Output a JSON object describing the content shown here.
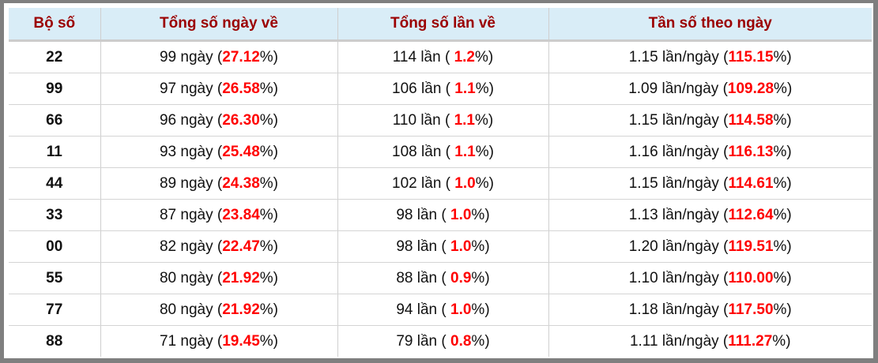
{
  "colors": {
    "header_bg": "#d9edf7",
    "header_text": "#9b0000",
    "highlight": "#ff0000"
  },
  "headers": [
    "Bộ số",
    "Tổng số ngày về",
    "Tổng số lần về",
    "Tần số theo ngày"
  ],
  "rows": [
    {
      "num": "22",
      "days": "99",
      "days_pct": "27.12",
      "times": "114",
      "times_pct": "1.2",
      "freq": "1.15",
      "freq_pct": "115.15"
    },
    {
      "num": "99",
      "days": "97",
      "days_pct": "26.58",
      "times": "106",
      "times_pct": "1.1",
      "freq": "1.09",
      "freq_pct": "109.28"
    },
    {
      "num": "66",
      "days": "96",
      "days_pct": "26.30",
      "times": "110",
      "times_pct": "1.1",
      "freq": "1.15",
      "freq_pct": "114.58"
    },
    {
      "num": "11",
      "days": "93",
      "days_pct": "25.48",
      "times": "108",
      "times_pct": "1.1",
      "freq": "1.16",
      "freq_pct": "116.13"
    },
    {
      "num": "44",
      "days": "89",
      "days_pct": "24.38",
      "times": "102",
      "times_pct": "1.0",
      "freq": "1.15",
      "freq_pct": "114.61"
    },
    {
      "num": "33",
      "days": "87",
      "days_pct": "23.84",
      "times": "98",
      "times_pct": "1.0",
      "freq": "1.13",
      "freq_pct": "112.64"
    },
    {
      "num": "00",
      "days": "82",
      "days_pct": "22.47",
      "times": "98",
      "times_pct": "1.0",
      "freq": "1.20",
      "freq_pct": "119.51"
    },
    {
      "num": "55",
      "days": "80",
      "days_pct": "21.92",
      "times": "88",
      "times_pct": "0.9",
      "freq": "1.10",
      "freq_pct": "110.00"
    },
    {
      "num": "77",
      "days": "80",
      "days_pct": "21.92",
      "times": "94",
      "times_pct": "1.0",
      "freq": "1.18",
      "freq_pct": "117.50"
    },
    {
      "num": "88",
      "days": "71",
      "days_pct": "19.45",
      "times": "79",
      "times_pct": "0.8",
      "freq": "1.11",
      "freq_pct": "111.27"
    }
  ],
  "units": {
    "days": "ngày",
    "times": "lần",
    "freq": "lần/ngày"
  }
}
